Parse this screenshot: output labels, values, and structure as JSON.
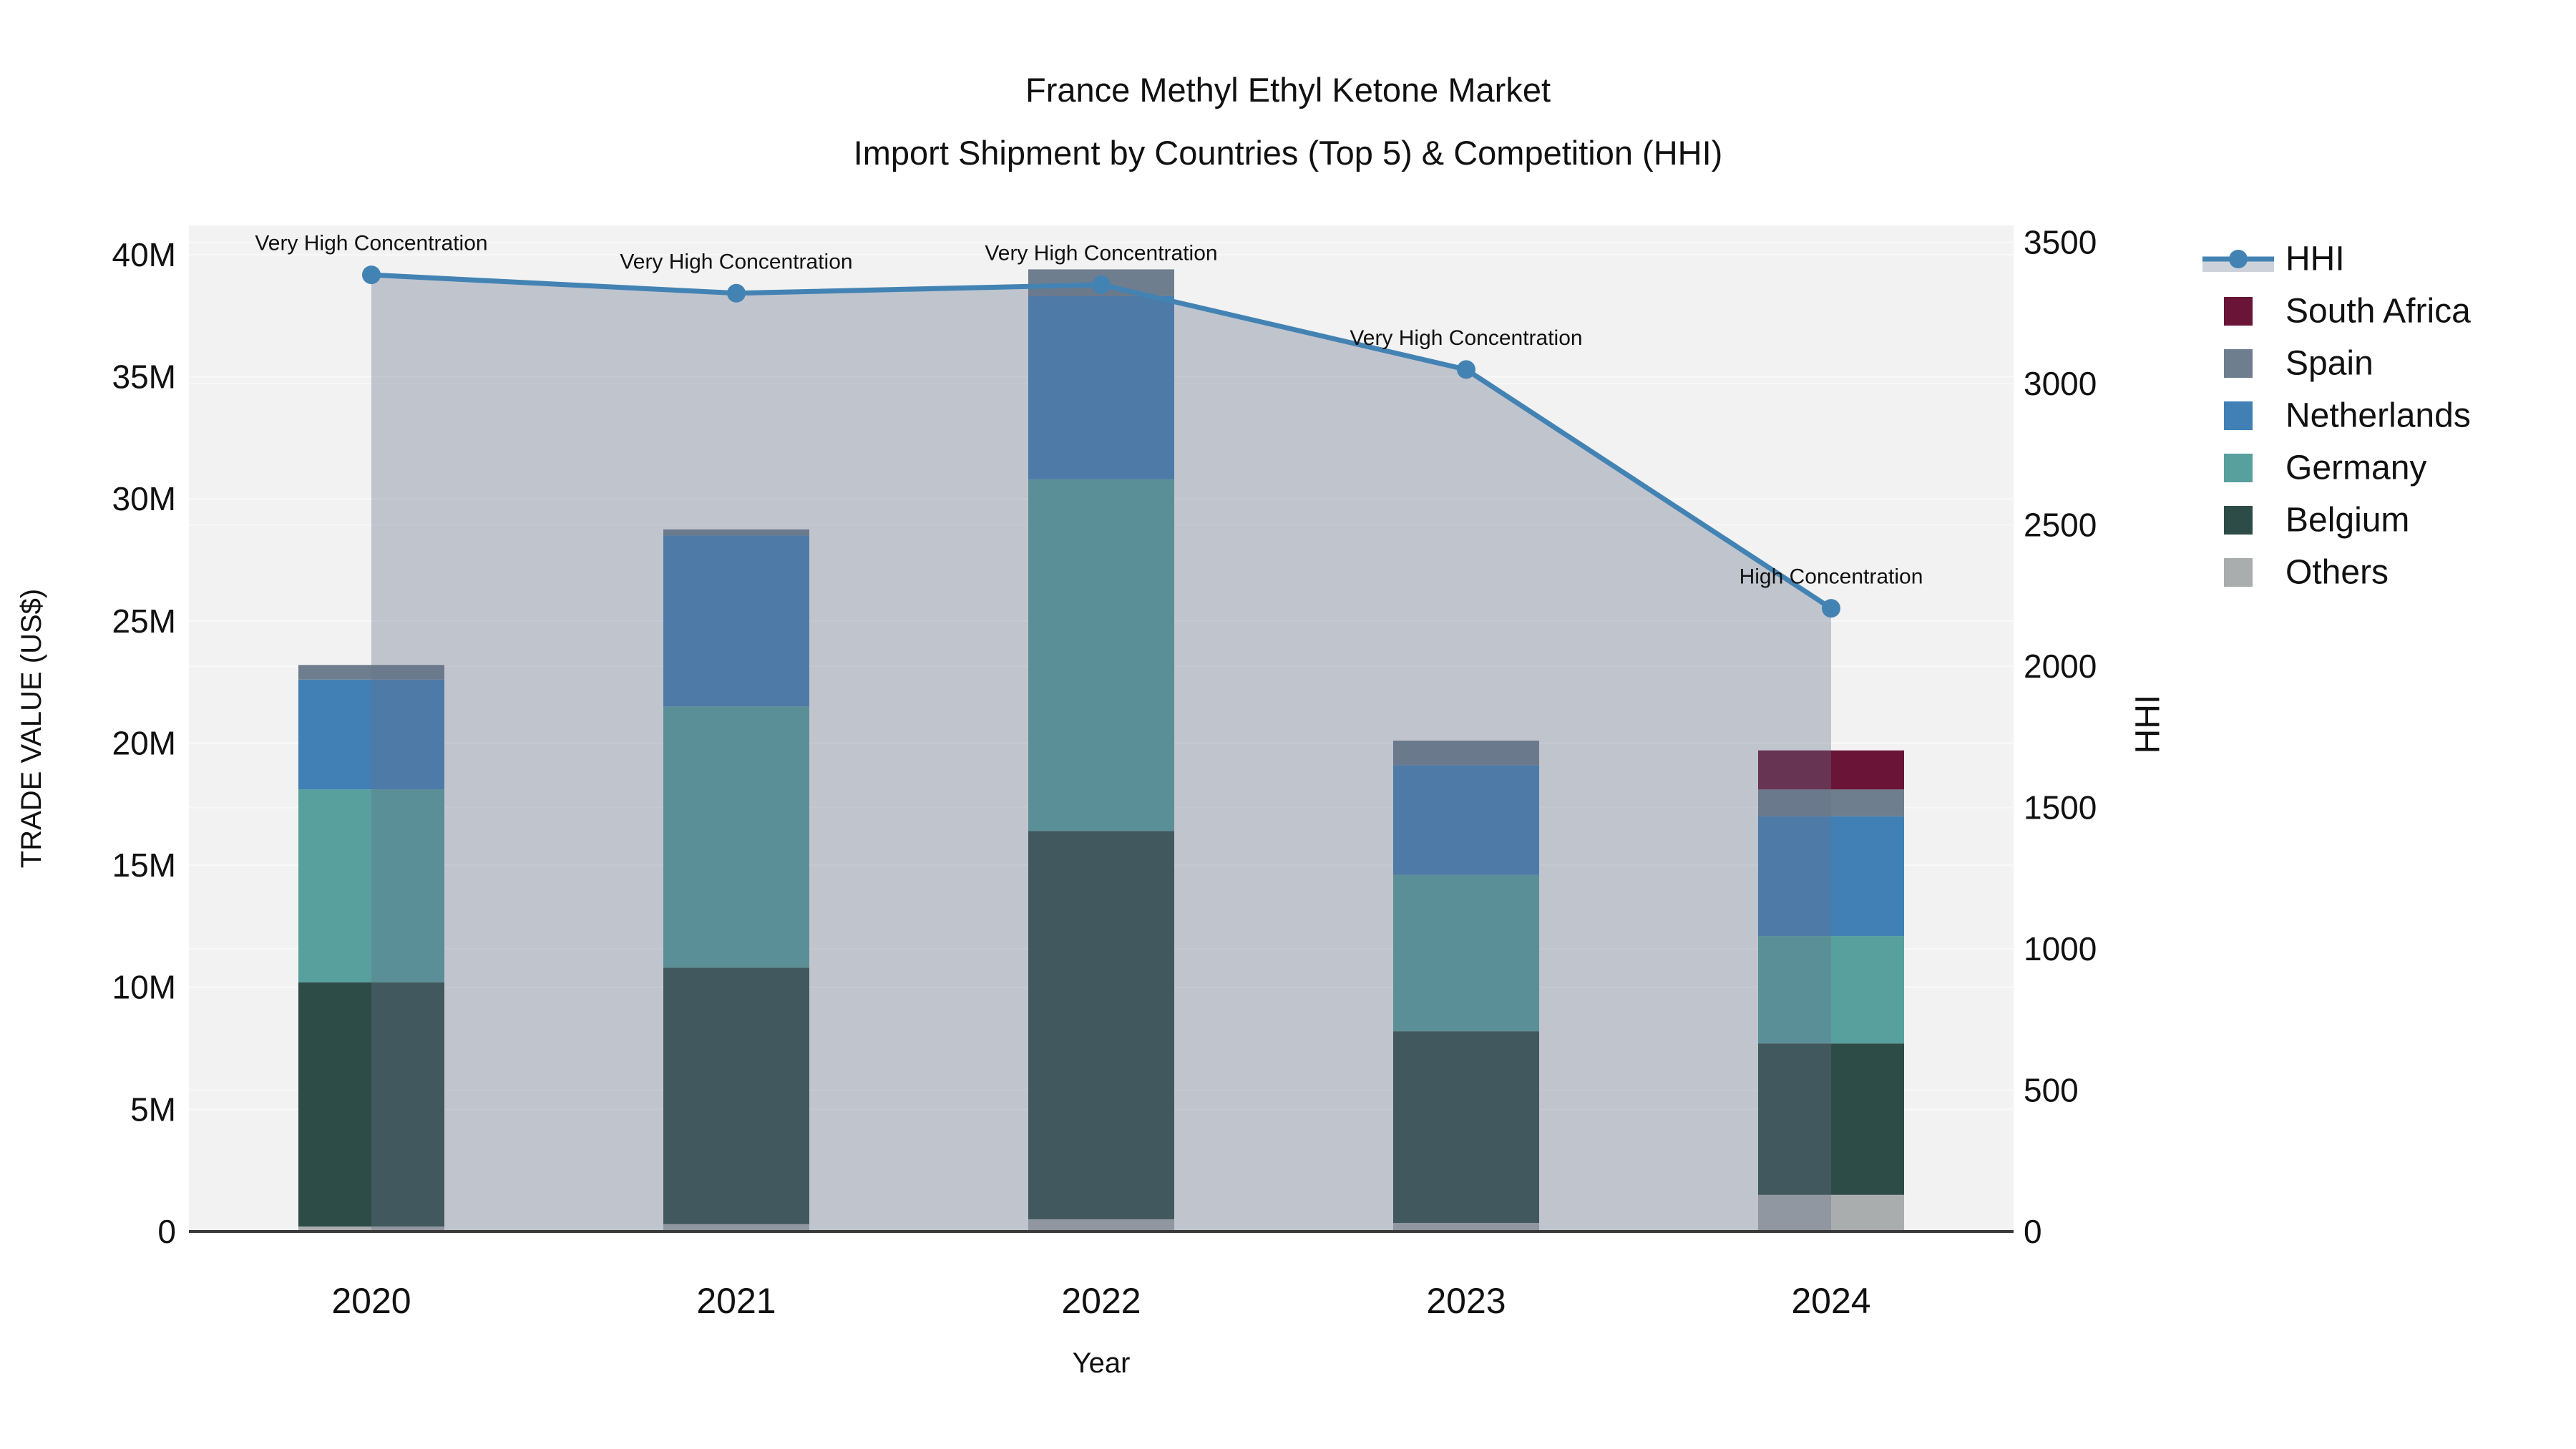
{
  "title": {
    "line1": "France Methyl Ethyl Ketone Market",
    "line2": "Import Shipment by Countries (Top 5) & Competition (HHI)"
  },
  "axes": {
    "left": {
      "title": "TRADE VALUE (US$)",
      "tick_labels": [
        "0",
        "5M",
        "10M",
        "15M",
        "20M",
        "25M",
        "30M",
        "35M",
        "40M"
      ],
      "tick_values_m": [
        0,
        5,
        10,
        15,
        20,
        25,
        30,
        35,
        40
      ],
      "range_m": [
        0,
        41.2
      ]
    },
    "right": {
      "title": "HHI",
      "tick_labels": [
        "0",
        "500",
        "1000",
        "1500",
        "2000",
        "2500",
        "3000",
        "3500"
      ],
      "tick_values": [
        0,
        500,
        1000,
        1500,
        2000,
        2500,
        3000,
        3500
      ],
      "range": [
        0,
        3560
      ]
    },
    "x": {
      "title": "Year",
      "categories": [
        "2020",
        "2021",
        "2022",
        "2023",
        "2024"
      ]
    }
  },
  "chart_data": {
    "type": "combo-stacked-bar-line",
    "categories": [
      "2020",
      "2021",
      "2022",
      "2023",
      "2024"
    ],
    "bar_value_unit": "million US$",
    "series": [
      {
        "name": "Others",
        "color": "#AAADAE",
        "values": [
          0.2,
          0.3,
          0.5,
          0.35,
          1.5
        ]
      },
      {
        "name": "Belgium",
        "color": "#2E4C47",
        "values": [
          10.0,
          10.5,
          15.9,
          7.85,
          6.2
        ]
      },
      {
        "name": "Germany",
        "color": "#57A09E",
        "values": [
          7.9,
          10.7,
          14.4,
          6.4,
          4.4
        ]
      },
      {
        "name": "Netherlands",
        "color": "#4180B5",
        "values": [
          4.5,
          7.0,
          7.5,
          4.5,
          4.9
        ]
      },
      {
        "name": "Spain",
        "color": "#6F7E8E",
        "values": [
          0.6,
          0.25,
          1.1,
          1.0,
          1.1
        ]
      },
      {
        "name": "South Africa",
        "color": "#6A1537",
        "values": [
          0,
          0,
          0,
          0,
          1.6
        ]
      }
    ],
    "line": {
      "name": "HHI",
      "color": "#4383B4",
      "area_fill": "rgba(100,112,138,0.35)",
      "values": [
        3385,
        3320,
        3350,
        3050,
        2205
      ]
    },
    "annotations": [
      {
        "year": "2020",
        "label": "Very High Concentration"
      },
      {
        "year": "2021",
        "label": "Very High Concentration"
      },
      {
        "year": "2022",
        "label": "Very High Concentration"
      },
      {
        "year": "2023",
        "label": "Very High Concentration"
      },
      {
        "year": "2024",
        "label": "High Concentration"
      }
    ],
    "plot_background": "#F2F2F2",
    "gridline_color": "#FFFFFF",
    "axis_line_color": "#3A3A3A",
    "grid": true,
    "legend_position": "right"
  },
  "legend": {
    "entries": [
      {
        "label": "HHI",
        "type": "line",
        "color": "#4383B4",
        "band_color": "#CDD2DA"
      },
      {
        "label": "South Africa",
        "type": "swatch",
        "color": "#6A1537"
      },
      {
        "label": "Spain",
        "type": "swatch",
        "color": "#6F7E8E"
      },
      {
        "label": "Netherlands",
        "type": "swatch",
        "color": "#4180B5"
      },
      {
        "label": "Germany",
        "type": "swatch",
        "color": "#57A09E"
      },
      {
        "label": "Belgium",
        "type": "swatch",
        "color": "#2E4C47"
      },
      {
        "label": "Others",
        "type": "swatch",
        "color": "#AAADAE"
      }
    ]
  }
}
